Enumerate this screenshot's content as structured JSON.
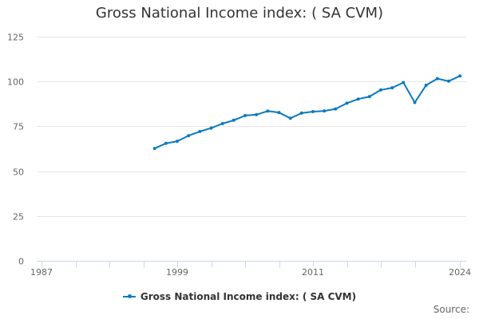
{
  "chart_data": {
    "type": "line",
    "title": "Gross National Income index: ( SA CVM)",
    "xlabel": "",
    "ylabel": "",
    "xlim": [
      1987,
      2024
    ],
    "ylim": [
      0,
      125
    ],
    "y_ticks": [
      0,
      25,
      50,
      75,
      100,
      125
    ],
    "x_tick_labels": [
      "1987",
      "1999",
      "2011",
      "2024"
    ],
    "x_tick_years": [
      1987,
      1990,
      1993,
      1996,
      1999,
      2002,
      2005,
      2008,
      2011,
      2014,
      2017,
      2020,
      2024
    ],
    "grid": "horizontal",
    "legend_position": "bottom",
    "x": [
      1997,
      1998,
      1999,
      2000,
      2001,
      2002,
      2003,
      2004,
      2005,
      2006,
      2007,
      2008,
      2009,
      2010,
      2011,
      2012,
      2013,
      2014,
      2015,
      2016,
      2017,
      2018,
      2019,
      2020,
      2021,
      2022,
      2023,
      2024
    ],
    "series": [
      {
        "name": "Gross National Income index: ( SA CVM)",
        "color": "#0a7abf",
        "values": [
          62.7,
          65.5,
          66.7,
          69.8,
          72.1,
          74.0,
          76.5,
          78.4,
          81.0,
          81.5,
          83.5,
          82.7,
          79.5,
          82.4,
          83.2,
          83.6,
          84.7,
          87.9,
          90.2,
          91.6,
          95.3,
          96.5,
          99.4,
          88.3,
          97.9,
          101.6,
          100.2,
          103.1
        ]
      }
    ]
  },
  "header": {
    "title": "Gross National Income index: ( SA CVM)"
  },
  "legend": {
    "items": [
      {
        "label": "Gross National Income index: ( SA CVM)",
        "color": "#0a7abf"
      }
    ]
  },
  "footer": {
    "source_label": "Source:"
  },
  "colors": {
    "series": "#0a7abf",
    "grid": "#e6e6e6",
    "axis": "#ccd6eb",
    "title": "#333333",
    "tick_label": "#666666"
  }
}
